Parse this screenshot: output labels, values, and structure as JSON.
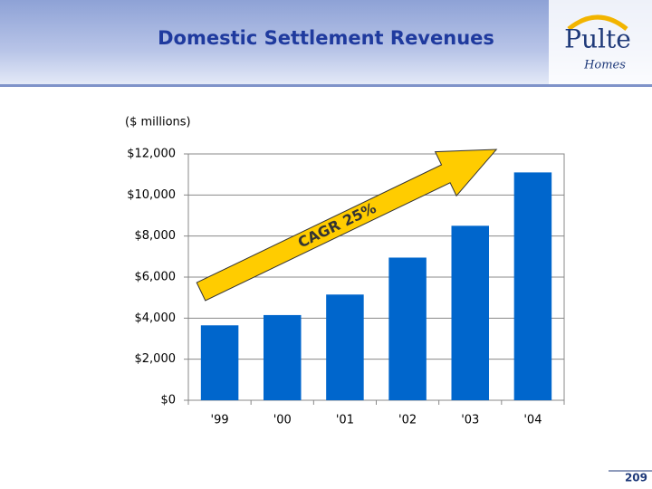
{
  "chart_data": {
    "type": "bar",
    "title": "Domestic Settlement Revenues",
    "y_label": "($ millions)",
    "categories": [
      "'99",
      "'00",
      "'01",
      "'02",
      "'03",
      "'04"
    ],
    "values": [
      3650,
      4150,
      5150,
      6950,
      8500,
      11100
    ],
    "color": "#0066cc",
    "ylim": [
      0,
      12000
    ],
    "yticks": [
      {
        "value": 0,
        "label": "$0"
      },
      {
        "value": 2000,
        "label": "$2,000"
      },
      {
        "value": 4000,
        "label": "$4,000"
      },
      {
        "value": 6000,
        "label": "$6,000"
      },
      {
        "value": 8000,
        "label": "$8,000"
      },
      {
        "value": 10000,
        "label": "$10,000"
      },
      {
        "value": 12000,
        "label": "$12,000"
      }
    ],
    "grid": true,
    "annotation": "CAGR 25%"
  },
  "logo": {
    "name": "Pulte",
    "tagline": "Homes"
  },
  "page_number": "209"
}
